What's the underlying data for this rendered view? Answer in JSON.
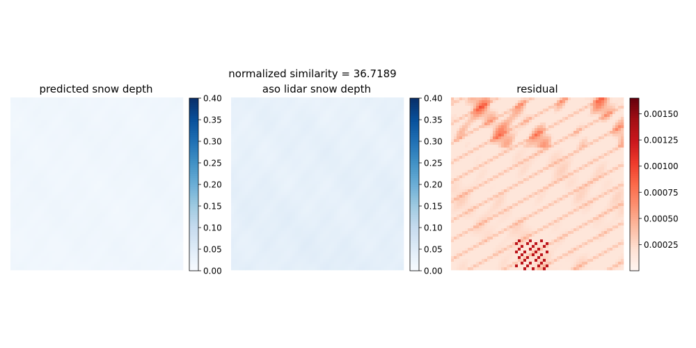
{
  "figure": {
    "suptitle": "normalized similarity = 36.7189"
  },
  "chart_data": [
    {
      "type": "heatmap",
      "title": "predicted snow depth",
      "colormap": "Blues",
      "colorbar": {
        "min": 0.0,
        "max": 0.4,
        "ticks": [
          "0.00",
          "0.05",
          "0.10",
          "0.15",
          "0.20",
          "0.25",
          "0.30",
          "0.35",
          "0.40"
        ]
      },
      "field": {
        "base": 0.01,
        "variation": 0.01,
        "min": 0.0,
        "max": 0.04
      },
      "axes": "off"
    },
    {
      "type": "heatmap",
      "title": "aso lidar snow depth",
      "colormap": "Blues",
      "colorbar": {
        "min": 0.0,
        "max": 0.4,
        "ticks": [
          "0.00",
          "0.05",
          "0.10",
          "0.15",
          "0.20",
          "0.25",
          "0.30",
          "0.35",
          "0.40"
        ]
      },
      "field": {
        "base": 0.02,
        "variation": 0.02,
        "min": 0.0,
        "max": 0.06
      },
      "axes": "off"
    },
    {
      "type": "heatmap",
      "title": "residual",
      "colormap": "Reds",
      "colorbar": {
        "min": 0.0,
        "max": 0.00165,
        "ticks": [
          "0.00025",
          "0.00050",
          "0.00075",
          "0.00100",
          "0.00125",
          "0.00150"
        ]
      },
      "field": {
        "base": 0.00015,
        "variation": 0.00035,
        "min": 0.0,
        "max": 0.00165
      },
      "axes": "off"
    }
  ],
  "colors": {
    "blues_low": "#f7fbff",
    "blues_high": "#08306b",
    "reds_low": "#fff5f0",
    "reds_high": "#67000d"
  }
}
